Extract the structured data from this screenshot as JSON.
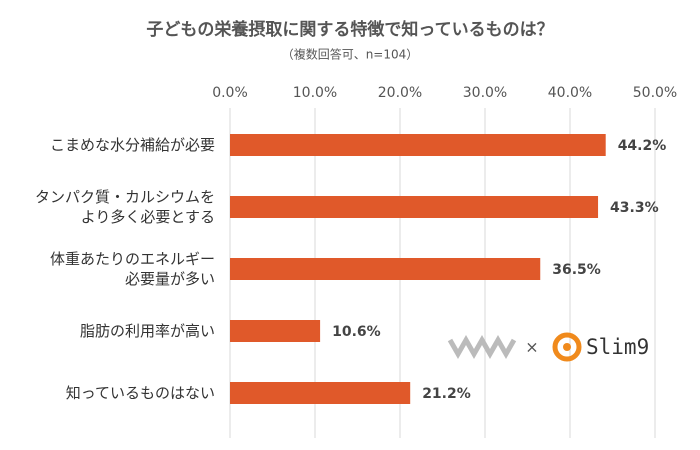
{
  "chart_data": {
    "type": "bar",
    "orientation": "horizontal",
    "title": "子どもの栄養摂取に関する特徴で知っているものは？",
    "subtitle": "（複数回答可、n=104）",
    "categories": [
      "こまめな水分補給が必要",
      "タンパク質・カルシウムを\nより多く必要とする",
      "体重あたりのエネルギー\n必要量が多い",
      "脂肪の利用率が高い",
      "知っているものはない"
    ],
    "values": [
      44.2,
      43.3,
      36.5,
      10.6,
      21.2
    ],
    "value_labels": [
      "44.2%",
      "43.3%",
      "36.5%",
      "10.6%",
      "21.2%"
    ],
    "color": "#e0592a",
    "xlim": [
      0,
      50
    ],
    "xticks": [
      {
        "value": 0,
        "label": "0.0%"
      },
      {
        "value": 10,
        "label": "10.0%"
      },
      {
        "value": 20,
        "label": "20.0%"
      },
      {
        "value": 30,
        "label": "30.0%"
      },
      {
        "value": 40,
        "label": "40.0%"
      },
      {
        "value": 50,
        "label": "50.0%"
      }
    ],
    "grid": true,
    "logos": {
      "separator": "×",
      "brand": "Slim9"
    }
  }
}
